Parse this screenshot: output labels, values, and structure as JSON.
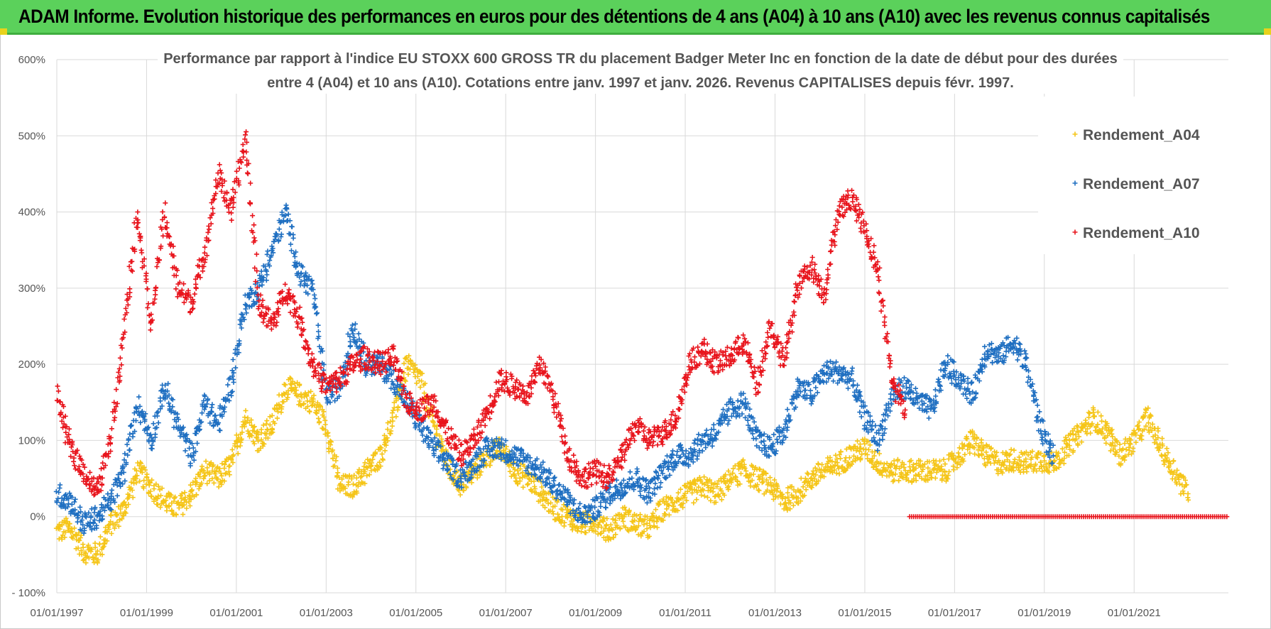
{
  "banner": {
    "title": "ADAM Informe. Evolution historique des performances en euros pour des détentions de 4 ans (A04) à 10 ans (A10) avec les revenus connus capitalisés"
  },
  "chart_data": {
    "type": "scatter",
    "title_line1": "Performance par rapport à l'indice EU STOXX 600 GROSS TR  du placement Badger Meter Inc en fonction de la date de début pour des durées",
    "title_line2": "entre 4 (A04) et 10 ans (A10).  Cotations entre janv. 1997 et janv. 2026. Revenus CAPITALISES depuis févr. 1997.",
    "x_tick_labels": [
      "01/01/1997",
      "01/01/1999",
      "01/01/2001",
      "01/01/2003",
      "01/01/2005",
      "01/01/2007",
      "01/01/2009",
      "01/01/2011",
      "01/01/2013",
      "01/01/2015",
      "01/01/2017",
      "01/01/2019",
      "01/01/2021"
    ],
    "y_tick_labels": [
      "- 100%",
      "0%",
      "100%",
      "200%",
      "300%",
      "400%",
      "500%",
      "600%"
    ],
    "xlim": [
      1997.0,
      2023.1
    ],
    "ylim": [
      -100,
      600
    ],
    "x_unit": "year",
    "y_unit": "percent",
    "marker": "+",
    "series": [
      {
        "name": "Rendement_A04",
        "color": "#f5c518",
        "x": [
          1997.0,
          1997.3,
          1997.6,
          1997.9,
          1998.2,
          1998.5,
          1998.8,
          1999.1,
          1999.4,
          1999.7,
          2000.0,
          2000.3,
          2000.6,
          2000.9,
          2001.2,
          2001.5,
          2001.8,
          2002.1,
          2002.4,
          2002.7,
          2003.0,
          2003.3,
          2003.6,
          2003.9,
          2004.2,
          2004.5,
          2004.8,
          2005.1,
          2005.4,
          2005.7,
          2006.0,
          2006.3,
          2006.6,
          2006.9,
          2007.2,
          2007.5,
          2007.8,
          2008.1,
          2008.4,
          2008.7,
          2009.0,
          2009.3,
          2009.6,
          2009.9,
          2010.2,
          2010.5,
          2010.8,
          2011.1,
          2011.4,
          2011.7,
          2012.0,
          2012.3,
          2012.6,
          2012.9,
          2013.2,
          2013.5,
          2013.8,
          2014.1,
          2014.4,
          2014.7,
          2015.0,
          2015.3,
          2015.6,
          2015.9,
          2016.2,
          2016.5,
          2016.8,
          2017.1,
          2017.4,
          2017.7,
          2018.0,
          2018.3,
          2018.6,
          2018.9,
          2019.2,
          2019.5,
          2019.8,
          2020.1,
          2020.4,
          2020.7,
          2021.0,
          2021.3,
          2021.6,
          2021.9,
          2022.2
        ],
        "y": [
          -20,
          -15,
          -45,
          -50,
          -10,
          10,
          60,
          40,
          20,
          10,
          30,
          60,
          50,
          70,
          130,
          100,
          120,
          170,
          160,
          150,
          120,
          40,
          40,
          60,
          80,
          130,
          200,
          180,
          120,
          70,
          40,
          60,
          80,
          90,
          60,
          50,
          30,
          10,
          0,
          -10,
          -5,
          -20,
          0,
          -10,
          -15,
          10,
          20,
          30,
          40,
          30,
          50,
          60,
          50,
          40,
          20,
          30,
          50,
          60,
          70,
          80,
          90,
          70,
          60,
          60,
          60,
          60,
          60,
          80,
          100,
          80,
          70,
          75,
          70,
          75,
          70,
          90,
          110,
          130,
          110,
          80,
          100,
          130,
          90,
          60,
          30
        ]
      },
      {
        "name": "Rendement_A07",
        "color": "#1f6fc1",
        "x": [
          1997.0,
          1997.3,
          1997.6,
          1997.9,
          1998.2,
          1998.5,
          1998.8,
          1999.1,
          1999.4,
          1999.7,
          2000.0,
          2000.3,
          2000.6,
          2000.9,
          2001.2,
          2001.5,
          2001.8,
          2002.1,
          2002.4,
          2002.7,
          2003.0,
          2003.3,
          2003.6,
          2003.9,
          2004.2,
          2004.5,
          2004.8,
          2005.1,
          2005.4,
          2005.7,
          2006.0,
          2006.3,
          2006.6,
          2006.9,
          2007.2,
          2007.5,
          2007.8,
          2008.1,
          2008.4,
          2008.7,
          2009.0,
          2009.3,
          2009.6,
          2009.9,
          2010.2,
          2010.5,
          2010.8,
          2011.1,
          2011.4,
          2011.7,
          2012.0,
          2012.3,
          2012.6,
          2012.9,
          2013.2,
          2013.5,
          2013.8,
          2014.1,
          2014.4,
          2014.7,
          2015.0,
          2015.3,
          2015.6,
          2015.9,
          2016.2,
          2016.5,
          2016.8,
          2017.1,
          2017.4,
          2017.7,
          2018.0,
          2018.3,
          2018.6,
          2018.9,
          2019.2
        ],
        "y": [
          30,
          20,
          -10,
          0,
          20,
          60,
          150,
          100,
          170,
          120,
          80,
          150,
          120,
          180,
          280,
          300,
          350,
          400,
          320,
          300,
          160,
          170,
          250,
          200,
          200,
          180,
          150,
          120,
          90,
          70,
          50,
          70,
          90,
          90,
          80,
          70,
          60,
          40,
          20,
          0,
          10,
          30,
          40,
          50,
          30,
          60,
          80,
          80,
          100,
          110,
          140,
          150,
          100,
          90,
          110,
          170,
          160,
          190,
          190,
          180,
          130,
          100,
          160,
          170,
          150,
          140,
          200,
          180,
          160,
          220,
          210,
          230,
          200,
          120,
          80
        ]
      },
      {
        "name": "Rendement_A10",
        "color": "#e8141c",
        "x": [
          1997.0,
          1997.3,
          1997.6,
          1997.9,
          1998.2,
          1998.5,
          1998.8,
          1999.1,
          1999.4,
          1999.7,
          2000.0,
          2000.3,
          2000.6,
          2000.9,
          2001.2,
          2001.5,
          2001.8,
          2002.1,
          2002.4,
          2002.7,
          2003.0,
          2003.3,
          2003.6,
          2003.9,
          2004.2,
          2004.5,
          2004.8,
          2005.1,
          2005.4,
          2005.7,
          2006.0,
          2006.3,
          2006.6,
          2006.9,
          2007.2,
          2007.5,
          2007.8,
          2008.1,
          2008.4,
          2008.7,
          2009.0,
          2009.3,
          2009.6,
          2009.9,
          2010.2,
          2010.5,
          2010.8,
          2011.1,
          2011.4,
          2011.7,
          2012.0,
          2012.3,
          2012.6,
          2012.9,
          2013.2,
          2013.5,
          2013.8,
          2014.1,
          2014.4,
          2014.7,
          2015.0,
          2015.3,
          2015.6,
          2015.9
        ],
        "y": [
          160,
          90,
          60,
          30,
          100,
          250,
          400,
          250,
          400,
          300,
          280,
          350,
          450,
          400,
          500,
          280,
          250,
          300,
          260,
          200,
          170,
          180,
          200,
          210,
          200,
          210,
          150,
          140,
          150,
          110,
          80,
          100,
          140,
          180,
          170,
          160,
          200,
          150,
          80,
          50,
          60,
          50,
          80,
          120,
          100,
          110,
          130,
          200,
          220,
          200,
          210,
          230,
          170,
          250,
          200,
          300,
          330,
          290,
          400,
          420,
          380,
          320,
          180,
          140
        ],
        "zero_band_from": 2016.0,
        "zero_band_to": 2023.1
      }
    ],
    "legend": {
      "position": "top-right",
      "labels": [
        "Rendement_A04",
        "Rendement_A07",
        "Rendement_A10"
      ]
    }
  }
}
